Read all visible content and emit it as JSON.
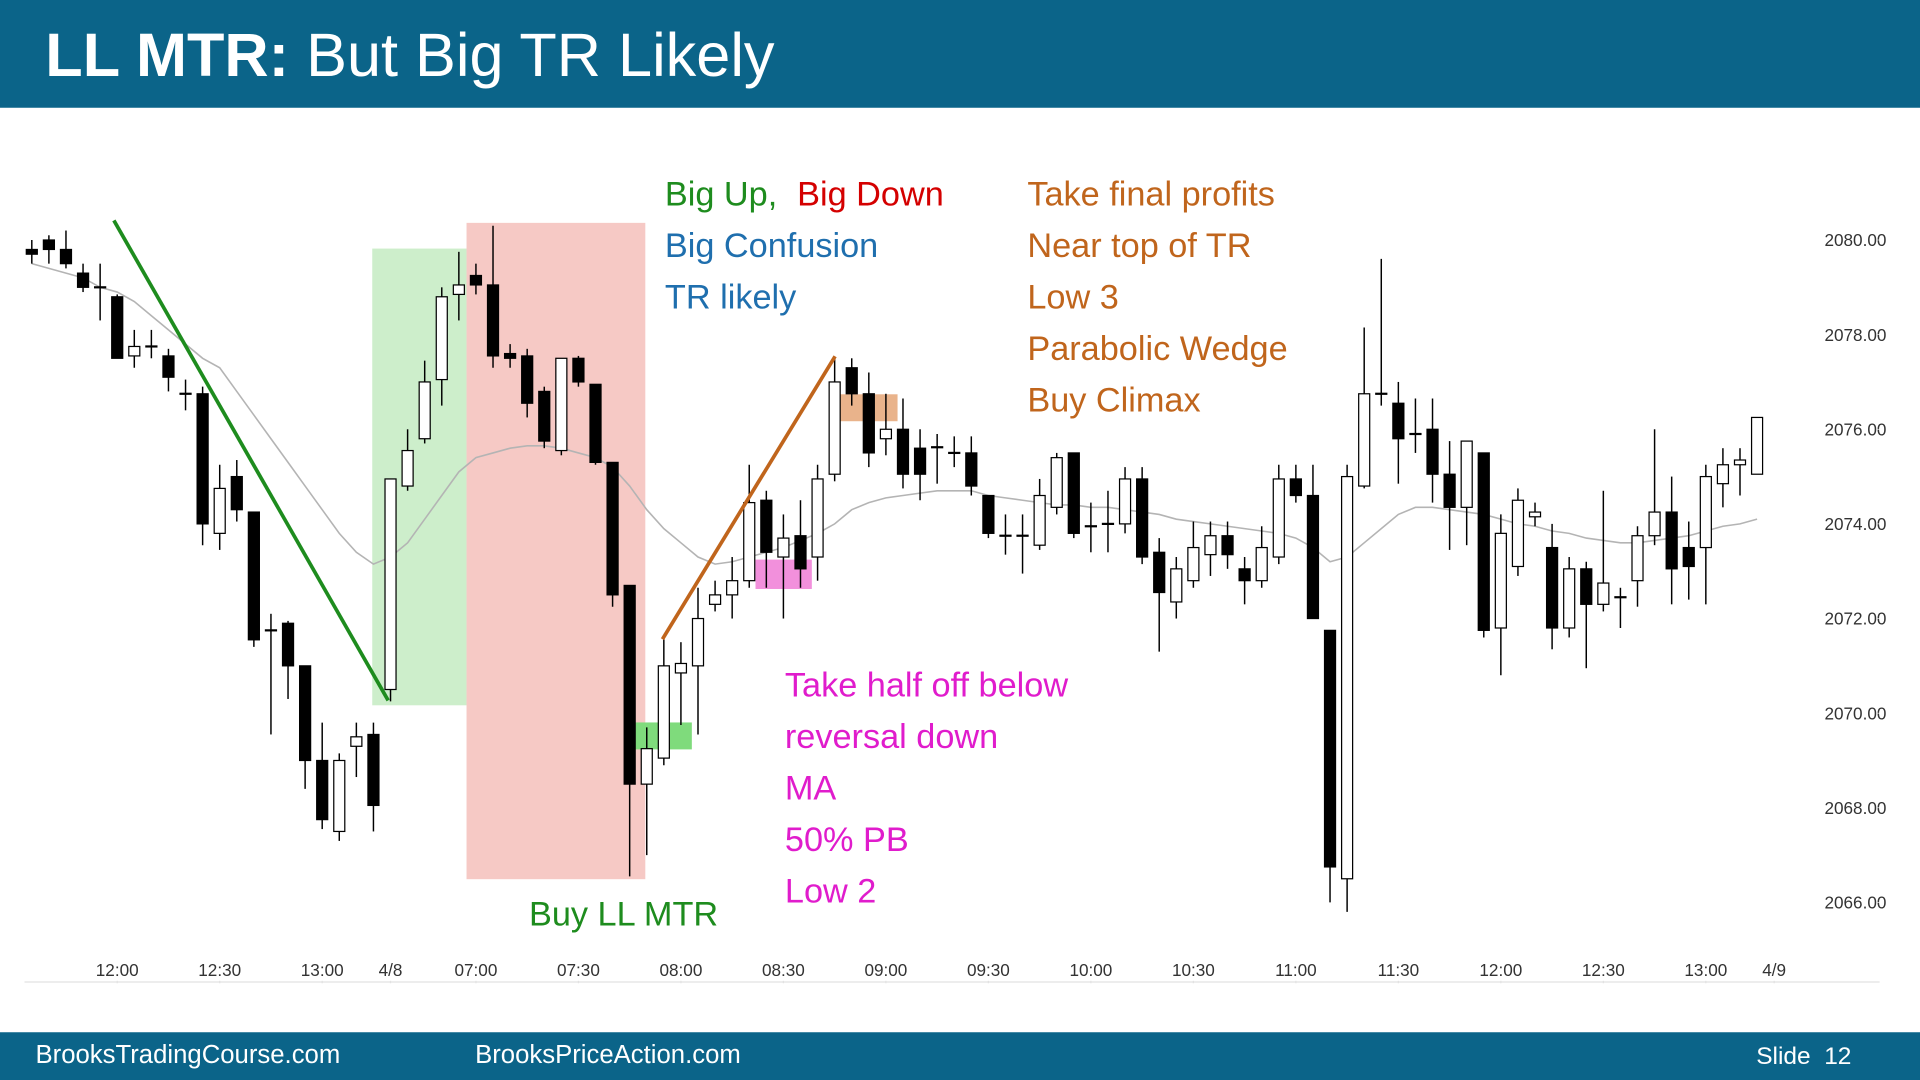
{
  "header": {
    "title_bold": "LL MTR:",
    "title_rest": "But Big TR Likely"
  },
  "footer": {
    "left": "BrooksTradingCourse.com",
    "middle": "BrooksPriceAction.com",
    "slide": "Slide  12"
  },
  "chart_data": {
    "type": "candlestick",
    "up_color": "#ffffff",
    "down_color": "#000000",
    "ma_color": "#b4b4b4",
    "grid": false,
    "ylim": [
      2065.5,
      2080.5
    ],
    "yticks": [
      {
        "value": 2066,
        "label": "2066.00"
      },
      {
        "value": 2068,
        "label": "2068.00"
      },
      {
        "value": 2070,
        "label": "2070.00"
      },
      {
        "value": 2072,
        "label": "2072.00"
      },
      {
        "value": 2074,
        "label": "2074.00"
      },
      {
        "value": 2076,
        "label": "2076.00"
      },
      {
        "value": 2078,
        "label": "2078.00"
      },
      {
        "value": 2080,
        "label": "2080.00"
      }
    ],
    "xlim": [
      -0.5,
      108
    ],
    "xticks": [
      {
        "value": 5,
        "label": "12:00"
      },
      {
        "value": 11,
        "label": "12:30"
      },
      {
        "value": 17,
        "label": "13:00"
      },
      {
        "value": 21,
        "label": "4/8"
      },
      {
        "value": 26,
        "label": "07:00"
      },
      {
        "value": 32,
        "label": "07:30"
      },
      {
        "value": 38,
        "label": "08:00"
      },
      {
        "value": 44,
        "label": "08:30"
      },
      {
        "value": 50,
        "label": "09:00"
      },
      {
        "value": 56,
        "label": "09:30"
      },
      {
        "value": 62,
        "label": "10:00"
      },
      {
        "value": 68,
        "label": "10:30"
      },
      {
        "value": 74,
        "label": "11:00"
      },
      {
        "value": 80,
        "label": "11:30"
      },
      {
        "value": 86,
        "label": "12:00"
      },
      {
        "value": 92,
        "label": "12:30"
      },
      {
        "value": 98,
        "label": "13:00"
      },
      {
        "value": 102,
        "label": "4/9"
      }
    ],
    "open": [
      2079.8,
      2080.0,
      2079.8,
      2079.3,
      2079.0,
      2078.8,
      2077.55,
      2077.75,
      2077.55,
      2076.75,
      2076.75,
      2073.8,
      2075.0,
      2074.25,
      2071.75,
      2071.9,
      2071.0,
      2069.0,
      2067.5,
      2069.3,
      2069.55,
      2070.5,
      2074.8,
      2075.8,
      2077.05,
      2078.85,
      2079.25,
      2079.05,
      2077.6,
      2077.55,
      2076.8,
      2075.55,
      2077.5,
      2076.95,
      2075.3,
      2072.7,
      2068.5,
      2069.05,
      2070.85,
      2071.0,
      2072.3,
      2072.5,
      2072.8,
      2074.5,
      2073.3,
      2073.75,
      2073.3,
      2075.05,
      2077.3,
      2076.75,
      2075.8,
      2076.0,
      2075.6,
      2075.62,
      2075.5,
      2075.5,
      2074.6,
      2073.75,
      2073.75,
      2073.55,
      2074.35,
      2075.5,
      2073.95,
      2074.0,
      2074.0,
      2074.95,
      2073.4,
      2072.35,
      2072.8,
      2073.35,
      2073.75,
      2073.05,
      2072.8,
      2073.3,
      2074.95,
      2074.6,
      2071.75,
      2066.5,
      2074.8,
      2076.75,
      2076.55,
      2075.9,
      2076.0,
      2075.05,
      2074.35,
      2075.5,
      2071.8,
      2073.1,
      2074.15,
      2073.5,
      2071.8,
      2073.05,
      2072.3,
      2072.45,
      2072.8,
      2073.75,
      2074.25,
      2073.5,
      2073.5,
      2074.85,
      2075.25,
      2075.05
    ],
    "high": [
      2080.0,
      2080.1,
      2080.2,
      2079.5,
      2079.5,
      2078.85,
      2078.1,
      2078.1,
      2077.7,
      2077.05,
      2076.9,
      2075.25,
      2075.35,
      2074.25,
      2072.1,
      2071.95,
      2071.0,
      2069.8,
      2069.15,
      2069.8,
      2069.8,
      2074.95,
      2076.0,
      2077.45,
      2079.0,
      2079.75,
      2079.5,
      2080.3,
      2077.8,
      2077.7,
      2076.9,
      2077.5,
      2077.55,
      2076.95,
      2075.3,
      2072.7,
      2069.7,
      2071.6,
      2071.5,
      2072.65,
      2072.8,
      2073.3,
      2075.25,
      2074.7,
      2074.2,
      2074.5,
      2075.25,
      2077.5,
      2077.5,
      2077.2,
      2076.75,
      2076.65,
      2076.0,
      2075.9,
      2075.85,
      2075.85,
      2074.6,
      2074.2,
      2074.2,
      2074.95,
      2075.5,
      2075.5,
      2074.45,
      2074.7,
      2075.2,
      2075.2,
      2073.7,
      2073.3,
      2074.05,
      2074.05,
      2074.05,
      2073.3,
      2073.95,
      2075.25,
      2075.25,
      2075.25,
      2071.75,
      2075.25,
      2078.15,
      2079.6,
      2077.0,
      2076.65,
      2076.65,
      2075.75,
      2075.75,
      2075.5,
      2074.2,
      2074.75,
      2074.45,
      2074.0,
      2073.3,
      2073.2,
      2074.7,
      2072.65,
      2073.95,
      2076.0,
      2075.0,
      2074.05,
      2075.25,
      2075.6,
      2075.6,
      2076.25
    ],
    "low": [
      2079.5,
      2079.5,
      2079.4,
      2078.9,
      2078.3,
      2077.5,
      2077.3,
      2077.5,
      2076.8,
      2076.4,
      2073.55,
      2073.45,
      2074.05,
      2071.4,
      2069.55,
      2070.3,
      2068.4,
      2067.55,
      2067.3,
      2068.65,
      2067.5,
      2070.25,
      2074.7,
      2075.7,
      2076.5,
      2078.3,
      2078.85,
      2077.3,
      2077.3,
      2076.25,
      2075.6,
      2075.45,
      2076.9,
      2075.25,
      2072.25,
      2066.55,
      2067.0,
      2068.9,
      2069.75,
      2069.55,
      2072.15,
      2072.0,
      2072.65,
      2072.65,
      2072.0,
      2072.65,
      2072.8,
      2074.9,
      2076.5,
      2075.2,
      2075.45,
      2074.75,
      2074.5,
      2074.85,
      2075.2,
      2074.6,
      2073.7,
      2073.35,
      2072.95,
      2073.45,
      2074.2,
      2073.7,
      2073.4,
      2073.4,
      2073.8,
      2073.15,
      2071.3,
      2072.0,
      2072.65,
      2072.9,
      2073.05,
      2072.3,
      2072.65,
      2073.15,
      2074.45,
      2072.0,
      2066.0,
      2065.8,
      2074.75,
      2076.5,
      2074.85,
      2075.5,
      2074.45,
      2073.45,
      2073.55,
      2071.6,
      2070.8,
      2072.9,
      2073.95,
      2071.35,
      2071.6,
      2070.95,
      2072.15,
      2071.8,
      2072.25,
      2073.55,
      2072.3,
      2072.4,
      2072.3,
      2074.35,
      2074.6,
      2075.05
    ],
    "close": [
      2079.7,
      2079.8,
      2079.5,
      2079.0,
      2078.95,
      2077.5,
      2077.75,
      2077.72,
      2077.1,
      2076.7,
      2074.0,
      2074.75,
      2074.3,
      2071.55,
      2071.7,
      2071.0,
      2069.0,
      2067.75,
      2069.0,
      2069.5,
      2068.05,
      2074.95,
      2075.55,
      2077.0,
      2078.8,
      2079.05,
      2079.05,
      2077.55,
      2077.5,
      2076.55,
      2075.75,
      2077.5,
      2077.0,
      2075.3,
      2072.5,
      2068.5,
      2069.25,
      2071.0,
      2071.05,
      2072.0,
      2072.5,
      2072.8,
      2074.45,
      2073.4,
      2073.7,
      2073.05,
      2074.95,
      2077.0,
      2076.75,
      2075.5,
      2076.0,
      2075.05,
      2075.05,
      2075.6,
      2075.48,
      2074.8,
      2073.8,
      2073.72,
      2073.72,
      2074.6,
      2075.4,
      2073.8,
      2073.9,
      2073.95,
      2074.95,
      2073.3,
      2072.55,
      2073.05,
      2073.5,
      2073.75,
      2073.35,
      2072.8,
      2073.5,
      2074.95,
      2074.6,
      2072.0,
      2066.75,
      2075.0,
      2076.75,
      2076.7,
      2075.8,
      2075.85,
      2075.05,
      2074.35,
      2075.75,
      2071.75,
      2073.8,
      2074.5,
      2074.25,
      2071.8,
      2073.05,
      2072.3,
      2072.75,
      2072.43,
      2073.75,
      2074.25,
      2073.05,
      2073.1,
      2075.0,
      2075.25,
      2075.35,
      2076.25
    ],
    "ma": [
      2079.5,
      2079.4,
      2079.3,
      2079.2,
      2079.0,
      2078.9,
      2078.7,
      2078.4,
      2078.1,
      2077.8,
      2077.5,
      2077.3,
      2076.8,
      2076.3,
      2075.8,
      2075.3,
      2074.8,
      2074.3,
      2073.8,
      2073.4,
      2073.15,
      2073.3,
      2073.6,
      2074.1,
      2074.6,
      2075.1,
      2075.4,
      2075.5,
      2075.6,
      2075.65,
      2075.65,
      2075.6,
      2075.5,
      2075.4,
      2075.2,
      2074.8,
      2074.3,
      2073.9,
      2073.6,
      2073.3,
      2073.15,
      2073.2,
      2073.3,
      2073.4,
      2073.5,
      2073.65,
      2073.8,
      2074.0,
      2074.3,
      2074.45,
      2074.55,
      2074.6,
      2074.65,
      2074.7,
      2074.7,
      2074.7,
      2074.6,
      2074.55,
      2074.5,
      2074.45,
      2074.4,
      2074.4,
      2074.35,
      2074.35,
      2074.3,
      2074.25,
      2074.2,
      2074.1,
      2074.05,
      2074.0,
      2073.95,
      2073.9,
      2073.85,
      2073.8,
      2073.7,
      2073.5,
      2073.2,
      2073.3,
      2073.6,
      2073.9,
      2074.2,
      2074.35,
      2074.35,
      2074.3,
      2074.25,
      2074.2,
      2074.1,
      2074.0,
      2073.95,
      2073.85,
      2073.8,
      2073.7,
      2073.65,
      2073.6,
      2073.6,
      2073.65,
      2073.7,
      2073.75,
      2073.85,
      2073.95,
      2074.0,
      2074.1
    ],
    "annotations": [
      {
        "text": "Big Up,",
        "color": "#1e8c1e"
      },
      {
        "text": "Big Down",
        "color": "#d40000"
      },
      {
        "text": "Big Confusion",
        "color": "#1f6fae"
      },
      {
        "text": "TR likely",
        "color": "#1f6fae"
      },
      {
        "text": "Take final profits",
        "color": "#c0651c"
      },
      {
        "text": "Near top of TR",
        "color": "#c0651c"
      },
      {
        "text": "Low 3",
        "color": "#c0651c"
      },
      {
        "text": "Parabolic Wedge",
        "color": "#c0651c"
      },
      {
        "text": "Buy Climax",
        "color": "#c0651c"
      },
      {
        "text": "Take half off below",
        "color": "#e01ccc"
      },
      {
        "text": "reversal down",
        "color": "#e01ccc"
      },
      {
        "text": "MA",
        "color": "#e01ccc"
      },
      {
        "text": "50% PB",
        "color": "#e01ccc"
      },
      {
        "text": "Low 2",
        "color": "#e01ccc"
      },
      {
        "text": "Buy LL MTR",
        "color": "#1e8c1e"
      }
    ]
  }
}
